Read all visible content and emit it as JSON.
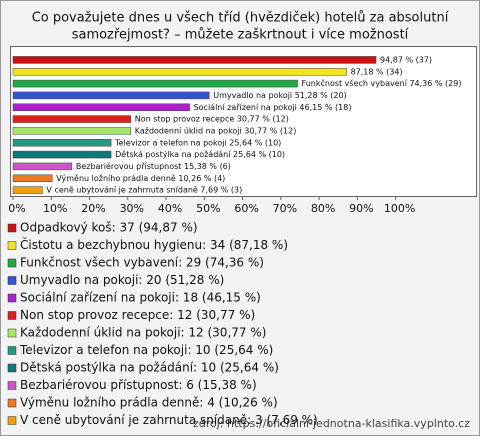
{
  "chart_data": {
    "type": "bar",
    "orientation": "horizontal",
    "title": [
      "Co považujete dnes u všech tříd (hvězdiček) hotelů za absolutní",
      "samozřejmost? – můžete zaškrtnout i více možností"
    ],
    "categories": [
      "Odpadkový koš",
      "Čistotu a bezchybnou hygienu",
      "Funkčnost všech vybavení",
      "Umyvadlo na pokoji",
      "Sociální zařízení na pokoji",
      "Non stop provoz recepce",
      "Každodenní úklid na pokoji",
      "Televizor a telefon na pokoji",
      "Dětská postýlka na požádání",
      "Bezbariérovou přístupnost",
      "Výměnu ložního prádla denně",
      "V ceně ubytování je zahrnuta snídaně"
    ],
    "values": [
      94.87,
      87.18,
      74.36,
      51.28,
      46.15,
      30.77,
      30.77,
      25.64,
      25.64,
      15.38,
      10.26,
      7.69
    ],
    "value_labels": [
      "94,87 % (37)",
      "87,18 % (34)",
      "Funkčnost všech vybavení 74,36 % (29)",
      "Umyvadlo na pokoji 51,28 % (20)",
      "Sociální zařízení na pokoji 46,15 % (18)",
      "Non stop provoz recepce 30,77 % (12)",
      "Každodenní úklid na pokoji 30,77 % (12)",
      "Televizor a telefon na pokoji 25,64 % (10)",
      "Dětská postýlka na požádání 25,64 % (10)",
      "Bezbariérovou přístupnost 15,38 % (6)",
      "Výměnu ložního prádla denně 10,26 % (4)",
      "V ceně ubytování je zahrnuta snídaně 7,69 % (3)"
    ],
    "colors": [
      "#cc1111",
      "#f2e22a",
      "#22aa44",
      "#3355cc",
      "#aa22cc",
      "#dd2222",
      "#a8e866",
      "#229980",
      "#117777",
      "#cc55cc",
      "#ee7722",
      "#f0a010"
    ],
    "legend": [
      "Odpadkový koš: 37 (94,87 %)",
      "Čistotu a bezchybnou hygienu: 34 (87,18 %)",
      "Funkčnost všech vybavení: 29 (74,36 %)",
      "Umyvadlo na pokoji: 20 (51,28 %)",
      "Sociální zařízení na pokoji: 18 (46,15 %)",
      "Non stop provoz recepce: 12 (30,77 %)",
      "Každodenní úklid na pokoji: 12 (30,77 %)",
      "Televizor a telefon na pokoji: 10 (25,64 %)",
      "Dětská postýlka na požádání: 10 (25,64 %)",
      "Bezbariérovou přístupnost: 6 (15,38 %)",
      "Výměnu ložního prádla denně: 4 (10,26 %)",
      "V ceně ubytování je zahrnuta snídaně: 3 (7,69 %)"
    ],
    "xlim": [
      0,
      121
    ],
    "xticks": [
      {
        "value": 0,
        "label": "0%"
      },
      {
        "value": 10,
        "label": "10%"
      },
      {
        "value": 20,
        "label": "20%"
      },
      {
        "value": 30,
        "label": "30%"
      },
      {
        "value": 40,
        "label": "40%"
      },
      {
        "value": 50,
        "label": "50%"
      },
      {
        "value": 60,
        "label": "60%"
      },
      {
        "value": 70,
        "label": "70%"
      },
      {
        "value": 80,
        "label": "80%"
      },
      {
        "value": 90,
        "label": "90%"
      },
      {
        "value": 100,
        "label": "100%"
      }
    ],
    "grid": false,
    "source": "zdroj: https://oficialni-jednotna-klasifika.vyplnto.cz"
  }
}
